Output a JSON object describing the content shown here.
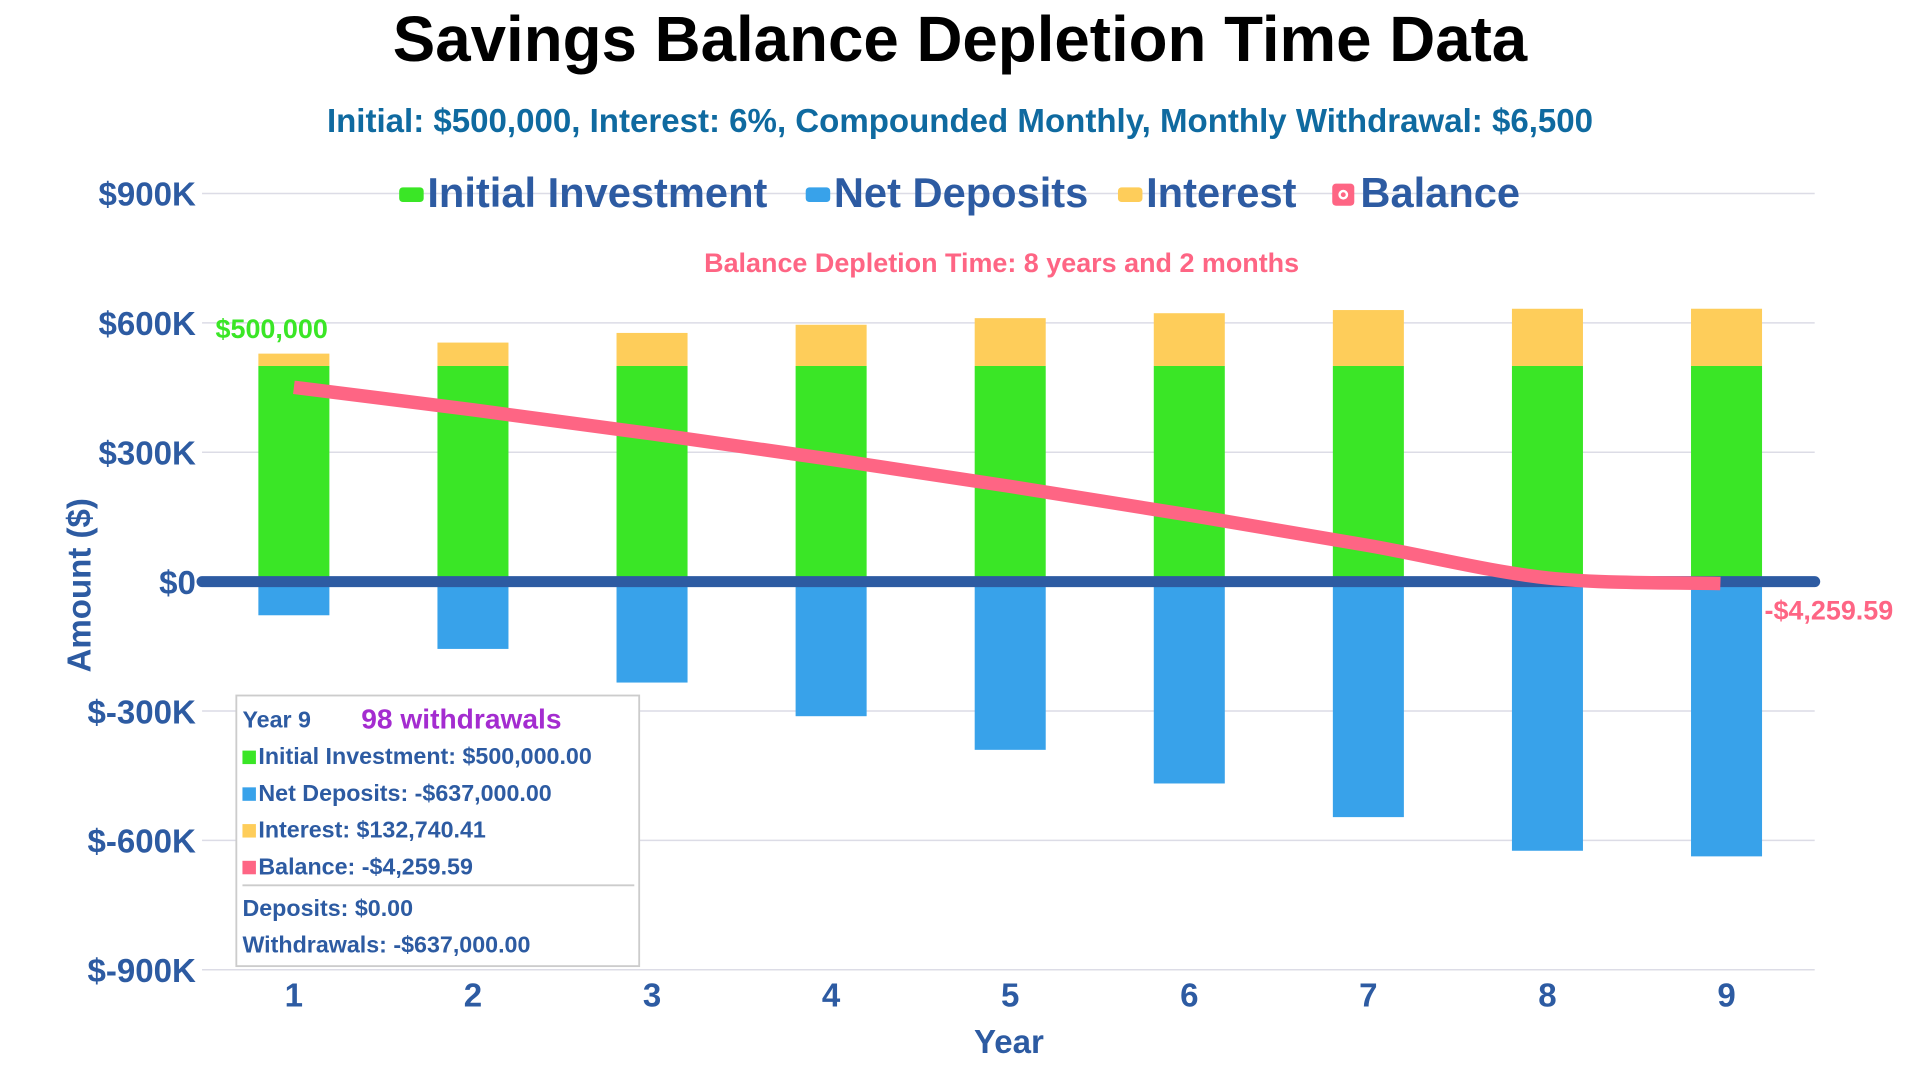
{
  "chart_data": {
    "type": "bar",
    "title": "Savings Balance Depletion Time Data",
    "subtitle": "Initial: $500,000, Interest: 6%, Compounded Monthly, Monthly Withdrawal: $6,500",
    "annotation": "Balance Depletion Time: 8 years and 2 months",
    "xlabel": "Year",
    "ylabel": "Amount ($)",
    "categories": [
      "1",
      "2",
      "3",
      "4",
      "5",
      "6",
      "7",
      "8",
      "9"
    ],
    "ylim": [
      -900000,
      900000
    ],
    "yticks": [
      900000,
      600000,
      300000,
      0,
      -300000,
      -600000,
      -900000
    ],
    "ytick_labels": [
      "$900K",
      "$600K",
      "$300K",
      "$0",
      "$-300K",
      "$-600K",
      "$-900K"
    ],
    "grid": true,
    "legend_placement": "top",
    "stacked": true,
    "series": [
      {
        "name": "Initial Investment",
        "type": "bar",
        "color": "#3ae626",
        "values": [
          500000,
          500000,
          500000,
          500000,
          500000,
          500000,
          500000,
          500000,
          500000
        ]
      },
      {
        "name": "Net Deposits",
        "type": "bar",
        "color": "#38a2ea",
        "values": [
          -78000,
          -156000,
          -234000,
          -312000,
          -390000,
          -468000,
          -546000,
          -624000,
          -637000
        ]
      },
      {
        "name": "Interest",
        "type": "bar",
        "color": "#fecd5a",
        "values": [
          28658,
          54272,
          76656,
          95609,
          110920,
          122365,
          129704,
          132685,
          132740.41
        ]
      },
      {
        "name": "Balance",
        "type": "line",
        "color": "#fe6584",
        "values": [
          450658,
          398272,
          342656,
          283609,
          220920,
          154365,
          83704,
          8685,
          -4259.59
        ]
      }
    ],
    "data_labels": {
      "initial": "$500,000",
      "final_balance": "-$4,259.59"
    },
    "tooltip": {
      "title": "Year 9",
      "highlight": "98 withdrawals",
      "rows": [
        "Initial Investment: $500,000.00",
        "Net Deposits: -$637,000.00",
        "Interest: $132,740.41",
        "Balance: -$4,259.59"
      ],
      "footer": [
        "Deposits: $0.00",
        "Withdrawals: -$637,000.00"
      ]
    },
    "colors": {
      "text": "#2d5ba2",
      "title": "#000000",
      "subtitle": "#0f6aa0",
      "highlight": "#a42cd0",
      "zero_line": "#2d5ba2"
    }
  }
}
